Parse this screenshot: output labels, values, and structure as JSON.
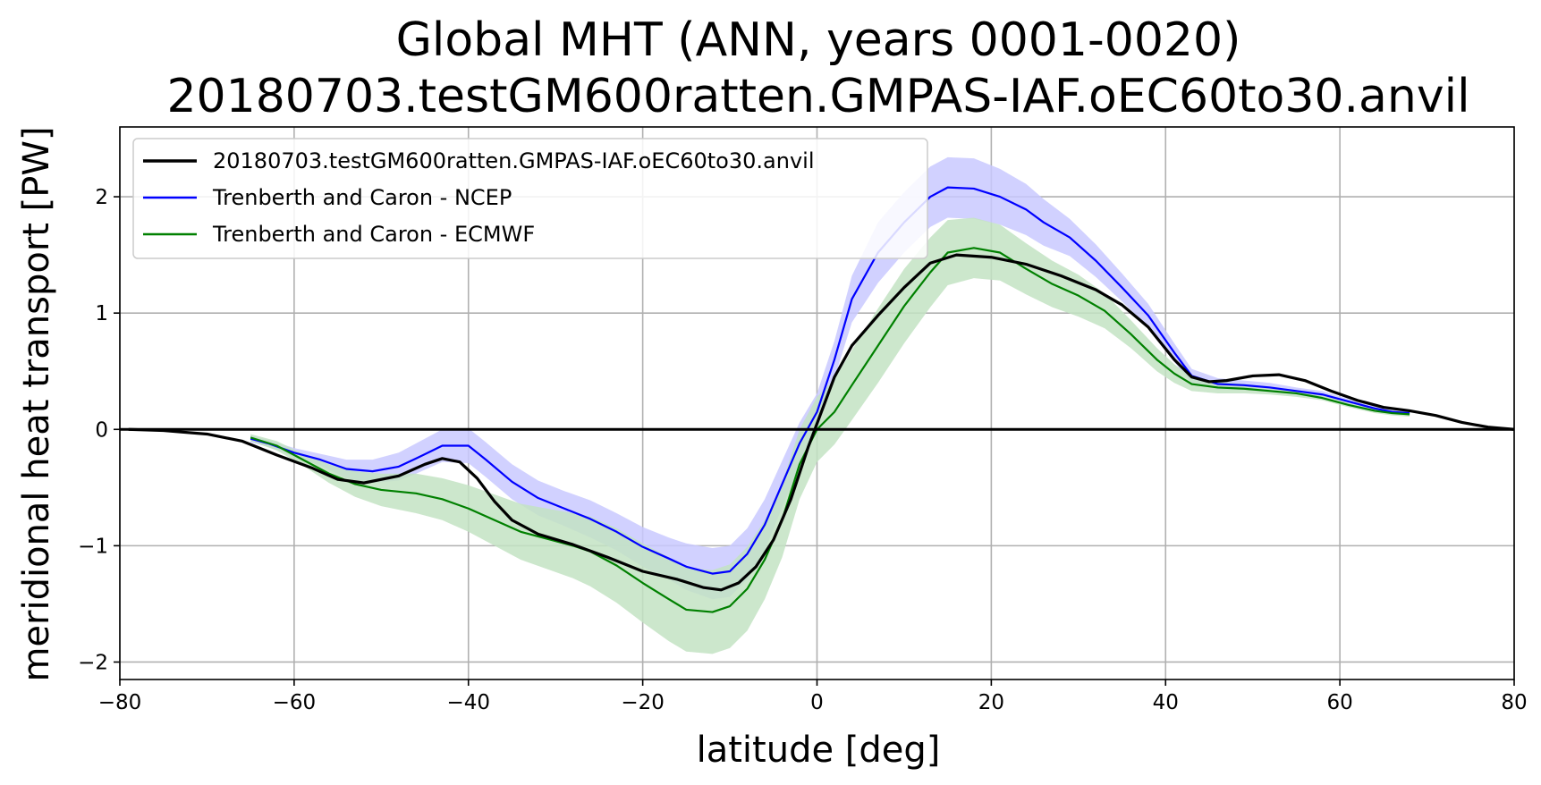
{
  "chart_data": {
    "type": "line",
    "title": "Global MHT (ANN, years 0001-0020)",
    "subtitle": "20180703.testGM600ratten.GMPAS-IAF.oEC60to30.anvil",
    "xlabel": "latitude [deg]",
    "ylabel": "meridional heat transport [PW]",
    "xlim": [
      -80,
      80
    ],
    "ylim": [
      -2.15,
      2.6
    ],
    "xticks": [
      -80,
      -60,
      -40,
      -20,
      0,
      20,
      40,
      60,
      80
    ],
    "yticks": [
      -2,
      -1,
      0,
      1,
      2
    ],
    "grid": true,
    "legend_position": "top-left",
    "series": [
      {
        "name": "20180703.testGM600ratten.GMPAS-IAF.oEC60to30.anvil",
        "color": "#000000",
        "x": [
          -79,
          -75,
          -70,
          -66,
          -62,
          -58,
          -55,
          -52,
          -48,
          -45,
          -43,
          -41,
          -39,
          -37,
          -35,
          -32,
          -28,
          -24,
          -20,
          -16,
          -13,
          -11,
          -9,
          -7,
          -5,
          -3,
          -1,
          0,
          2,
          4,
          7,
          10,
          13,
          16,
          20,
          24,
          28,
          32,
          35,
          38,
          41,
          43,
          45,
          47,
          50,
          53,
          56,
          59,
          62,
          65,
          68,
          71,
          74,
          77,
          80
        ],
        "y": [
          0.0,
          -0.01,
          -0.04,
          -0.1,
          -0.22,
          -0.33,
          -0.43,
          -0.46,
          -0.4,
          -0.3,
          -0.25,
          -0.28,
          -0.42,
          -0.62,
          -0.78,
          -0.9,
          -0.99,
          -1.1,
          -1.22,
          -1.29,
          -1.36,
          -1.38,
          -1.32,
          -1.18,
          -0.95,
          -0.6,
          -0.15,
          0.05,
          0.45,
          0.72,
          0.98,
          1.22,
          1.43,
          1.5,
          1.48,
          1.42,
          1.32,
          1.2,
          1.07,
          0.88,
          0.6,
          0.45,
          0.41,
          0.42,
          0.46,
          0.47,
          0.42,
          0.33,
          0.25,
          0.19,
          0.16,
          0.12,
          0.06,
          0.02,
          0.0
        ]
      },
      {
        "name": "Trenberth and Caron - NCEP",
        "color": "#0000ff",
        "band_color": "#c9c9ff",
        "x": [
          -65,
          -63,
          -60,
          -57,
          -54,
          -51,
          -48,
          -46,
          -43,
          -40,
          -38,
          -35,
          -32,
          -29,
          -26,
          -23,
          -20,
          -17,
          -15,
          -12,
          -10,
          -8,
          -6,
          -4,
          -2,
          0,
          2,
          4,
          7,
          10,
          13,
          15,
          18,
          21,
          24,
          26,
          29,
          32,
          35,
          38,
          41,
          43,
          46,
          49,
          52,
          55,
          58,
          61,
          64,
          66,
          68
        ],
        "y": [
          -0.08,
          -0.12,
          -0.2,
          -0.26,
          -0.34,
          -0.36,
          -0.32,
          -0.25,
          -0.14,
          -0.14,
          -0.26,
          -0.45,
          -0.59,
          -0.68,
          -0.77,
          -0.88,
          -1.01,
          -1.11,
          -1.18,
          -1.24,
          -1.22,
          -1.07,
          -0.82,
          -0.47,
          -0.12,
          0.15,
          0.6,
          1.12,
          1.52,
          1.78,
          2.0,
          2.08,
          2.07,
          2.0,
          1.89,
          1.78,
          1.65,
          1.45,
          1.22,
          0.98,
          0.66,
          0.46,
          0.39,
          0.38,
          0.36,
          0.33,
          0.3,
          0.24,
          0.18,
          0.15,
          0.14
        ],
        "band_half_width": [
          0.03,
          0.03,
          0.04,
          0.05,
          0.08,
          0.1,
          0.12,
          0.13,
          0.14,
          0.15,
          0.15,
          0.15,
          0.15,
          0.15,
          0.16,
          0.16,
          0.17,
          0.18,
          0.2,
          0.22,
          0.22,
          0.22,
          0.22,
          0.2,
          0.18,
          0.16,
          0.16,
          0.2,
          0.26,
          0.26,
          0.26,
          0.26,
          0.26,
          0.24,
          0.22,
          0.2,
          0.16,
          0.14,
          0.12,
          0.1,
          0.08,
          0.06,
          0.05,
          0.04,
          0.04,
          0.03,
          0.03,
          0.02,
          0.02,
          0.02,
          0.02
        ]
      },
      {
        "name": "Trenberth and Caron - ECMWF",
        "color": "#008000",
        "band_color": "#c3e3c3",
        "x": [
          -65,
          -62,
          -59,
          -56,
          -53,
          -50,
          -46,
          -43,
          -40,
          -37,
          -34,
          -31,
          -28,
          -26,
          -23,
          -20,
          -17,
          -15,
          -12,
          -10,
          -8,
          -6,
          -4,
          -2,
          0,
          2,
          4,
          7,
          10,
          13,
          15,
          18,
          21,
          24,
          27,
          30,
          33,
          36,
          39,
          41,
          43,
          46,
          49,
          52,
          55,
          58,
          61,
          64,
          66,
          68
        ],
        "y": [
          -0.07,
          -0.14,
          -0.26,
          -0.38,
          -0.47,
          -0.52,
          -0.55,
          -0.6,
          -0.68,
          -0.78,
          -0.88,
          -0.94,
          -1.0,
          -1.05,
          -1.17,
          -1.32,
          -1.46,
          -1.55,
          -1.57,
          -1.52,
          -1.37,
          -1.12,
          -0.78,
          -0.3,
          0.0,
          0.15,
          0.38,
          0.72,
          1.06,
          1.35,
          1.52,
          1.56,
          1.52,
          1.38,
          1.25,
          1.15,
          1.02,
          0.82,
          0.6,
          0.48,
          0.39,
          0.36,
          0.35,
          0.33,
          0.31,
          0.27,
          0.21,
          0.16,
          0.14,
          0.13
        ],
        "band_half_width": [
          0.03,
          0.04,
          0.05,
          0.08,
          0.11,
          0.14,
          0.17,
          0.18,
          0.2,
          0.22,
          0.24,
          0.26,
          0.28,
          0.3,
          0.32,
          0.34,
          0.36,
          0.36,
          0.36,
          0.36,
          0.36,
          0.34,
          0.32,
          0.3,
          0.28,
          0.28,
          0.3,
          0.32,
          0.32,
          0.3,
          0.28,
          0.26,
          0.24,
          0.22,
          0.2,
          0.18,
          0.15,
          0.12,
          0.1,
          0.08,
          0.06,
          0.05,
          0.04,
          0.03,
          0.03,
          0.02,
          0.02,
          0.02,
          0.02,
          0.02
        ]
      }
    ],
    "zero_line_color": "#000000",
    "grid_color": "#b0b0b0"
  }
}
